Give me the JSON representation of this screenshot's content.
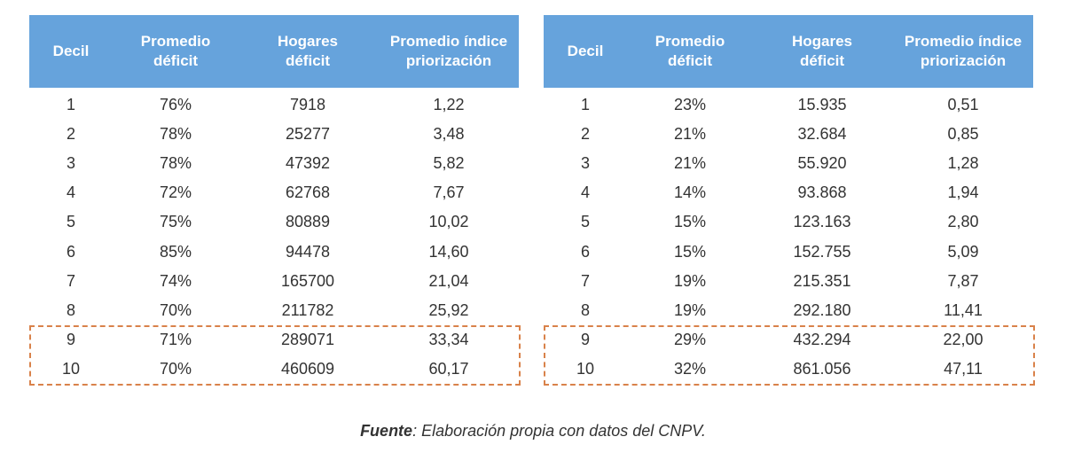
{
  "tables": [
    {
      "header": [
        [
          "Decil"
        ],
        [
          "Promedio",
          "déficit"
        ],
        [
          "Hogares",
          "déficit"
        ],
        [
          "Promedio índice",
          "priorización"
        ]
      ],
      "rows": [
        [
          "1",
          "76%",
          "7918",
          "1,22"
        ],
        [
          "2",
          "78%",
          "25277",
          "3,48"
        ],
        [
          "3",
          "78%",
          "47392",
          "5,82"
        ],
        [
          "4",
          "72%",
          "62768",
          "7,67"
        ],
        [
          "5",
          "75%",
          "80889",
          "10,02"
        ],
        [
          "6",
          "85%",
          "94478",
          "14,60"
        ],
        [
          "7",
          "74%",
          "165700",
          "21,04"
        ],
        [
          "8",
          "70%",
          "211782",
          "25,92"
        ],
        [
          "9",
          "71%",
          "289071",
          "33,34"
        ],
        [
          "10",
          "70%",
          "460609",
          "60,17"
        ]
      ]
    },
    {
      "header": [
        [
          "Decil"
        ],
        [
          "Promedio",
          "déficit"
        ],
        [
          "Hogares",
          "déficit"
        ],
        [
          "Promedio índice",
          "priorización"
        ]
      ],
      "rows": [
        [
          "1",
          "23%",
          "15.935",
          "0,51"
        ],
        [
          "2",
          "21%",
          "32.684",
          "0,85"
        ],
        [
          "3",
          "21%",
          "55.920",
          "1,28"
        ],
        [
          "4",
          "14%",
          "93.868",
          "1,94"
        ],
        [
          "5",
          "15%",
          "123.163",
          "2,80"
        ],
        [
          "6",
          "15%",
          "152.755",
          "5,09"
        ],
        [
          "7",
          "19%",
          "215.351",
          "7,87"
        ],
        [
          "8",
          "19%",
          "292.180",
          "11,41"
        ],
        [
          "9",
          "29%",
          "432.294",
          "22,00"
        ],
        [
          "10",
          "32%",
          "861.056",
          "47,11"
        ]
      ]
    }
  ],
  "caption": {
    "label": "Fuente",
    "text": ": Elaboración propia con datos del CNPV."
  }
}
